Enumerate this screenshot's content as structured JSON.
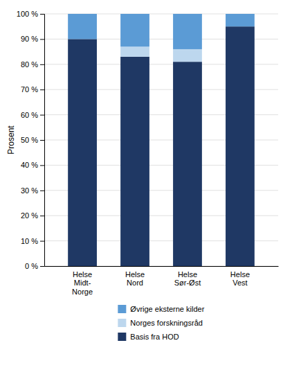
{
  "chart_data": {
    "type": "bar",
    "stacked": true,
    "categories": [
      "Helse\nMidt-\nNorge",
      "Helse\nNord",
      "Helse\nSør-Øst",
      "Helse\nVest"
    ],
    "series": [
      {
        "name": "Basis fra HOD",
        "color": "#1f3864",
        "values": [
          90,
          83,
          81,
          95
        ]
      },
      {
        "name": "Norges forskningsråd",
        "color": "#bdd7ee",
        "values": [
          0,
          4,
          5,
          0
        ]
      },
      {
        "name": "Øvrige eksterne kilder",
        "color": "#5b9bd5",
        "values": [
          10,
          13,
          14,
          5
        ]
      }
    ],
    "ylabel": "Prosent",
    "ylim": [
      0,
      100
    ],
    "yticks": [
      {
        "value": 0,
        "label": "0 %"
      },
      {
        "value": 10,
        "label": "10 %"
      },
      {
        "value": 20,
        "label": "20 %"
      },
      {
        "value": 30,
        "label": "30 %"
      },
      {
        "value": 40,
        "label": "40 %"
      },
      {
        "value": 50,
        "label": "50 %"
      },
      {
        "value": 60,
        "label": "60 %"
      },
      {
        "value": 70,
        "label": "70 %"
      },
      {
        "value": 80,
        "label": "80 %"
      },
      {
        "value": 90,
        "label": "90 %"
      },
      {
        "value": 100,
        "label": "100 %"
      }
    ],
    "grid": true,
    "legend": "bottom"
  }
}
